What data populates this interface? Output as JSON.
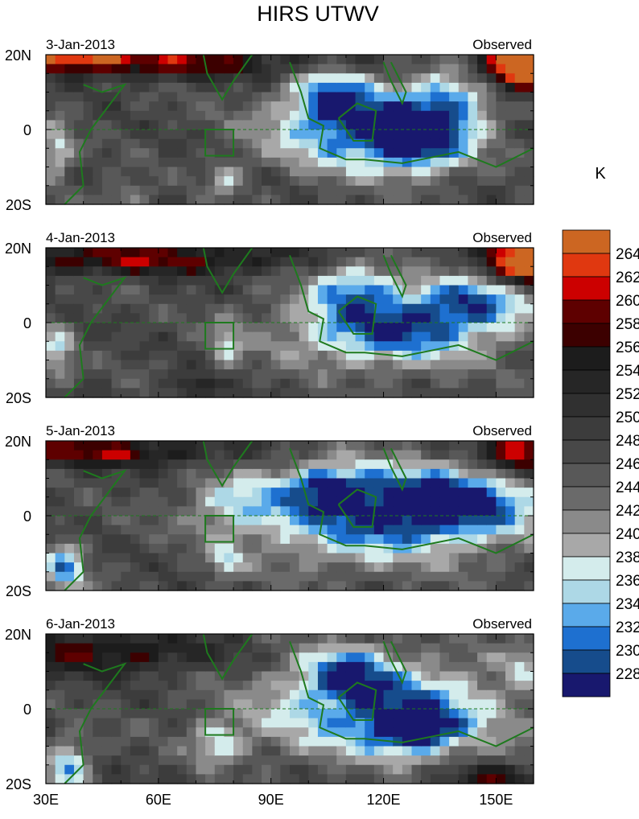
{
  "chart_data": {
    "type": "heatmap",
    "title": "HIRS UTWV",
    "units": "K",
    "lon_range": [
      30,
      160
    ],
    "lat_range": [
      -20,
      20
    ],
    "x_tick_labels": [
      "30E",
      "60E",
      "90E",
      "120E",
      "150E"
    ],
    "x_tick_values": [
      30,
      60,
      90,
      120,
      150
    ],
    "y_tick_labels": [
      "20N",
      "0",
      "20S"
    ],
    "y_tick_values": [
      20,
      0,
      -20
    ],
    "panels": [
      {
        "date": "3-Jan-2013",
        "label": "Observed"
      },
      {
        "date": "4-Jan-2013",
        "label": "Observed"
      },
      {
        "date": "5-Jan-2013",
        "label": "Observed"
      },
      {
        "date": "6-Jan-2013",
        "label": "Observed"
      }
    ],
    "colorbar": {
      "labels": [
        "264",
        "262",
        "260",
        "258",
        "256",
        "254",
        "252",
        "250",
        "248",
        "246",
        "244",
        "242",
        "240",
        "238",
        "236",
        "234",
        "232",
        "230",
        "228"
      ],
      "levels": [
        228,
        230,
        232,
        234,
        236,
        238,
        240,
        242,
        244,
        246,
        248,
        250,
        252,
        254,
        256,
        258,
        260,
        262,
        264
      ],
      "colors_low_to_high": [
        "#18186e",
        "#164c8c",
        "#1e70d0",
        "#5aaaea",
        "#add8e6",
        "#d4ecec",
        "#a8a8a8",
        "#8a8a8a",
        "#6a6a6a",
        "#585858",
        "#484848",
        "#3c3c3c",
        "#303030",
        "#262626",
        "#1c1c1c",
        "#3c0000",
        "#5e0000",
        "#cc0000",
        "#e03810",
        "#cc6622"
      ]
    },
    "box_region": {
      "lon": [
        72.5,
        80
      ],
      "lat": [
        -7,
        0
      ]
    }
  }
}
